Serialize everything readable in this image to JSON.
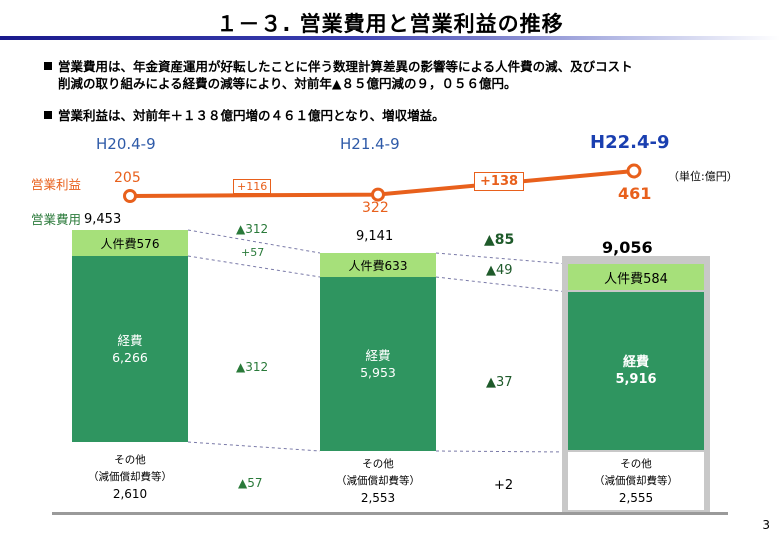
{
  "title": "１－３. 営業費用と営業利益の推移",
  "bullets": [
    {
      "line1": "営業費用は、年金資産運用が好転したことに伴う数理計算差異の影響等による人件費の減、及びコスト",
      "line2": "削減の取り組みによる経費の減等により、対前年▲８５億円減の９，０５６億円。"
    },
    {
      "line1": "営業利益は、対前年＋１３８億円増の４６１億円となり、増収増益。"
    }
  ],
  "unit": "（単位:億円）",
  "page_number": "3",
  "chart_data": {
    "type": "bar",
    "categories": [
      "H20.4-9",
      "H21.4-9",
      "H22.4-9"
    ],
    "series": [
      {
        "name": "人件費",
        "values": [
          576,
          633,
          584
        ],
        "color": "#a6e07a"
      },
      {
        "name": "経費",
        "values": [
          6266,
          5953,
          5916
        ],
        "color": "#2f9560"
      },
      {
        "name": "その他（減価償却費等）",
        "values": [
          2610,
          2553,
          2555
        ],
        "color": "#ffffff"
      }
    ],
    "totals_label": "営業費用",
    "totals": [
      "9,453",
      "9,141",
      "9,056"
    ],
    "operating_profit": {
      "name": "営業利益",
      "values": [
        205,
        322,
        461
      ],
      "color": "#e8601c",
      "changes": [
        "+116",
        "+138"
      ]
    },
    "segment_labels": {
      "personnel": [
        "人件費576",
        "人件費633",
        "人件費584"
      ],
      "expenses_name": "経費",
      "expenses": [
        "6,266",
        "5,953",
        "5,916"
      ],
      "other_name": "その他",
      "other_sub": "（減価償却費等）",
      "other": [
        "2,610",
        "2,553",
        "2,555"
      ]
    },
    "changes_1_2": {
      "total": "▲312",
      "personnel": "+57",
      "expenses": "▲312",
      "other": "▲57"
    },
    "changes_2_3": {
      "total": "▲85",
      "personnel": "▲49",
      "expenses": "▲37",
      "other": "+2"
    }
  }
}
